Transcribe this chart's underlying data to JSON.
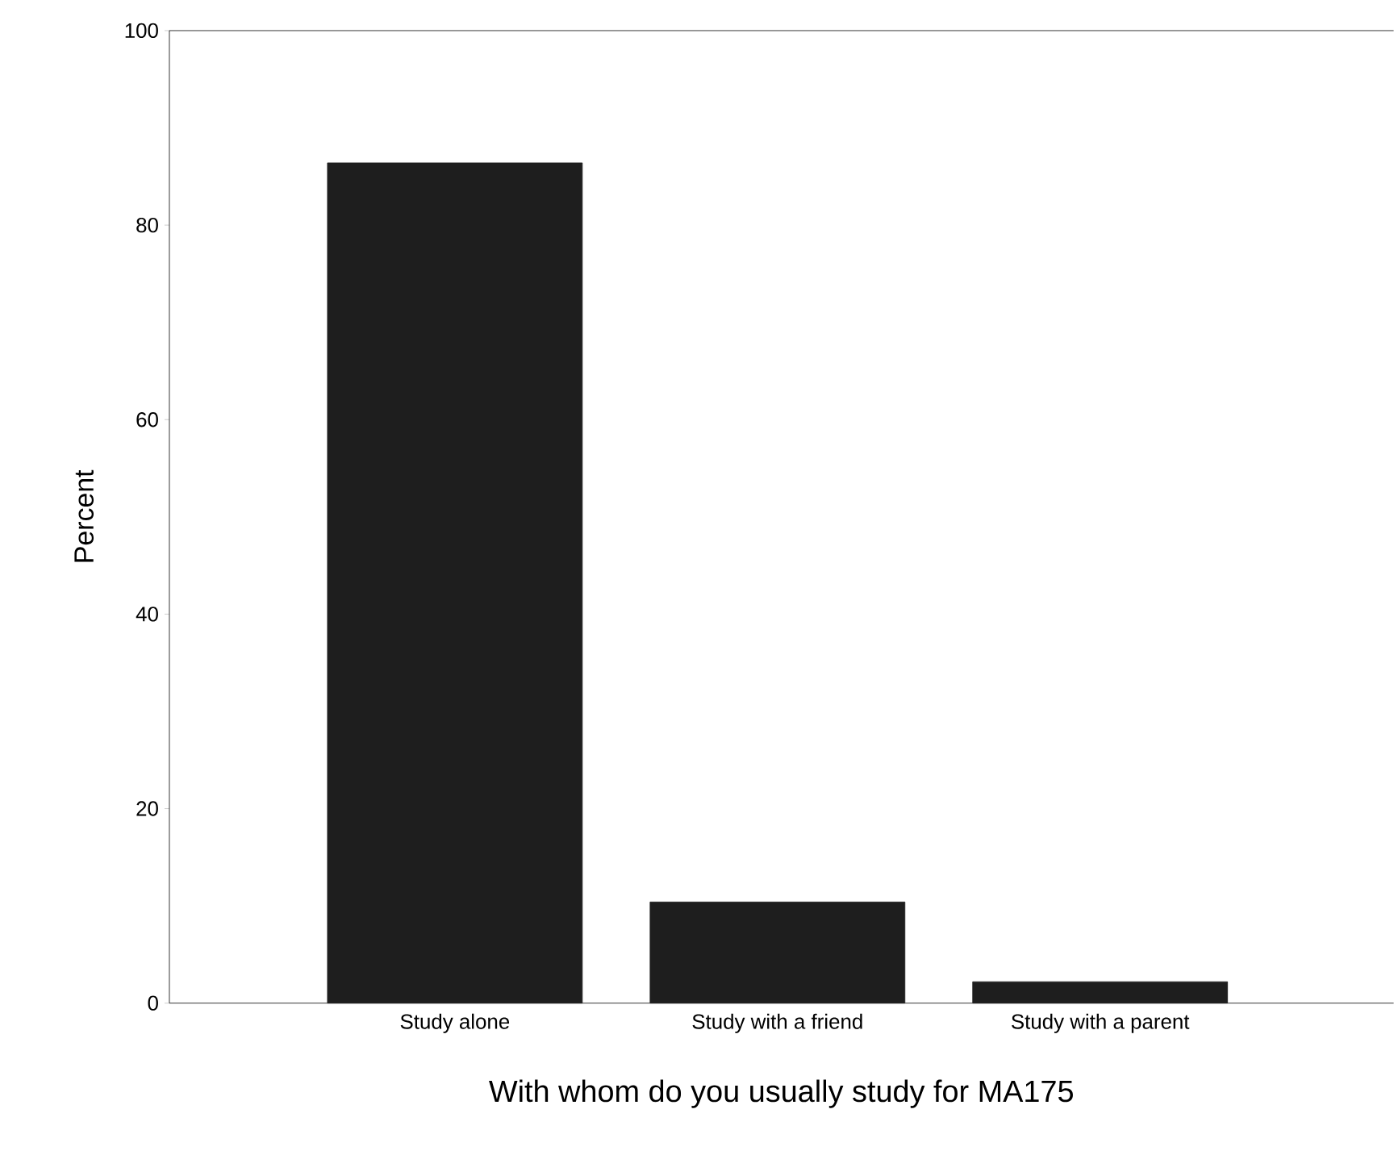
{
  "chart_data": {
    "type": "bar",
    "xlabel": "With whom do you usually study for MA175",
    "ylabel": "Percent",
    "categories": [
      "Study alone",
      "Study with a friend",
      "Study with a parent"
    ],
    "values": [
      86.4,
      10.4,
      2.2
    ],
    "color": "#1e1e1e",
    "ylim": [
      0,
      100
    ],
    "yticks": [
      0,
      20,
      40,
      60,
      80,
      100
    ],
    "grid": false
  }
}
